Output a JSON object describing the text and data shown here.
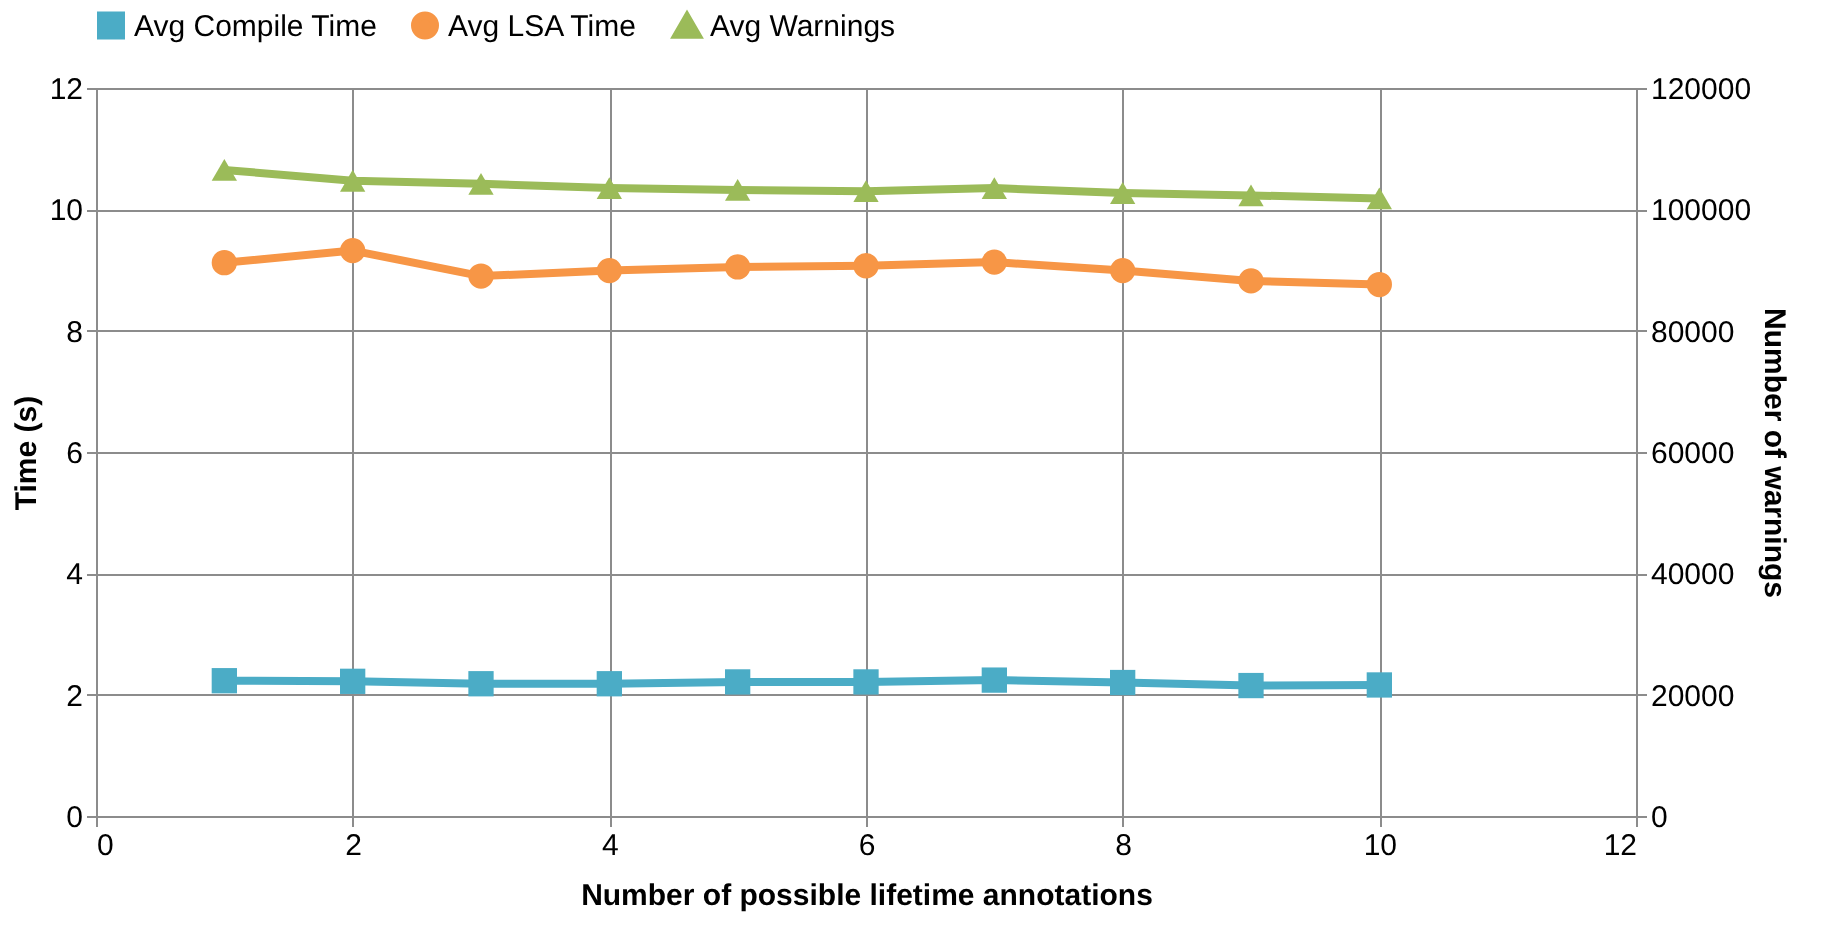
{
  "chart_data": {
    "type": "line",
    "xlabel": "Number of possible lifetime annotations",
    "ylabel": "Time (s)",
    "y2label": "Number of warnings",
    "x": [
      1,
      2,
      3,
      4,
      5,
      6,
      7,
      8,
      9,
      10
    ],
    "xlim": [
      0,
      12
    ],
    "xticks": [
      0,
      2,
      4,
      6,
      8,
      10,
      12
    ],
    "ylim": [
      0,
      12
    ],
    "yticks": [
      0,
      2,
      4,
      6,
      8,
      10,
      12
    ],
    "y2lim": [
      0,
      120000
    ],
    "y2ticks": [
      0,
      20000,
      40000,
      60000,
      80000,
      100000,
      120000
    ],
    "grid": true,
    "legend": "top",
    "line_style": "solid",
    "series": [
      {
        "name": "Avg Compile Time",
        "color": "#4bacc6",
        "marker": "square",
        "values": [
          2.23,
          2.22,
          2.18,
          2.18,
          2.21,
          2.21,
          2.24,
          2.2,
          2.15,
          2.16
        ]
      },
      {
        "name": "Avg LSA Time",
        "color": "#f79646",
        "marker": "circle",
        "values": [
          9.12,
          9.32,
          8.9,
          8.99,
          9.05,
          9.07,
          9.13,
          8.99,
          8.82,
          8.76
        ]
      },
      {
        "name": "Avg Warnings",
        "color": "#9bbb59",
        "marker": "triangle",
        "axis": "y2",
        "values": [
          106500,
          104700,
          104200,
          103500,
          103200,
          103000,
          103500,
          102700,
          102300,
          101800
        ]
      }
    ]
  }
}
